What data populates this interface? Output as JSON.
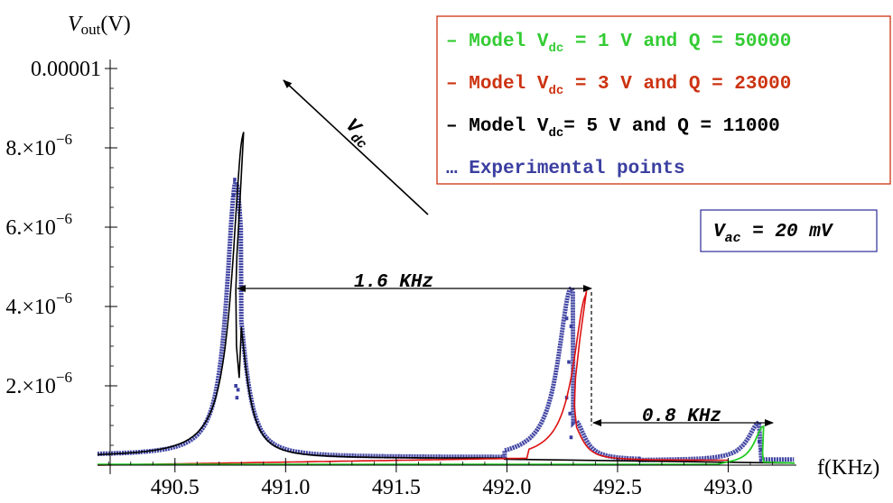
{
  "chart_data": {
    "type": "line",
    "ylabel_main": "V",
    "ylabel_sub": "out",
    "ylabel_unit": "(V)",
    "xlabel": "f(KHz)",
    "xlim": [
      490.15,
      493.3
    ],
    "ylim": [
      0,
      1e-05
    ],
    "x_ticks": [
      490.5,
      491.0,
      491.5,
      492.0,
      492.5,
      493.0
    ],
    "x_tick_labels": [
      "490.5",
      "491.0",
      "491.5",
      "492.0",
      "492.5",
      "493.0"
    ],
    "y_ticks": [
      {
        "value": 1e-05,
        "text": "0.00001",
        "exp": ""
      },
      {
        "value": 8e-06,
        "text": "8.×10",
        "exp": "−6"
      },
      {
        "value": 6e-06,
        "text": "6.×10",
        "exp": "−6"
      },
      {
        "value": 4e-06,
        "text": "4.×10",
        "exp": "−6"
      },
      {
        "value": 2e-06,
        "text": "2.×10",
        "exp": "−6"
      }
    ],
    "legend": [
      {
        "marker": "–",
        "text": "Model V",
        "sub": "dc",
        "rest": " = 1 V and Q = 50000",
        "color": "#33cc33"
      },
      {
        "marker": "–",
        "text": "Model V",
        "sub": "dc",
        "rest": " = 3 V and Q = 23000",
        "color": "#cc3311"
      },
      {
        "marker": "–",
        "text": "Model V",
        "sub": "dc",
        "rest": "= 5 V and Q = 11000",
        "color": "#000000"
      },
      {
        "marker": "…",
        "text": "Experimental points",
        "sub": "",
        "rest": "",
        "color": "#3b3fa0"
      }
    ],
    "annotation_vac": {
      "main": "V",
      "sub": "ac",
      "rest": " = 20 mV"
    },
    "annotation_vdc": {
      "main": "V",
      "sub": "dc"
    },
    "annotation_span1": "1.6 KHz",
    "annotation_span2": "0.8 KHz",
    "series": [
      {
        "name": "Model Vdc = 5 V and Q = 11000",
        "color": "#000000",
        "peak_x": 490.81,
        "peak_y": 8.4e-06,
        "jump_x": 490.775,
        "jump_low_y": 4.4e-06
      },
      {
        "name": "Model Vdc = 3 V and Q = 23000",
        "color": "#dd1111",
        "peak_x": 492.36,
        "peak_y": 4.4e-06,
        "jump_low_y": 9.5e-07
      },
      {
        "name": "Model Vdc = 1 V and Q = 50000",
        "color": "#22cc22",
        "peak_x": 493.16,
        "peak_y": 9.8e-07
      },
      {
        "name": "Experimental points",
        "color": "#3b3fa0"
      }
    ],
    "colors": {
      "experimental": "#3b3fa0",
      "legend_border": "#cc3311",
      "vac_border": "#2b2b99"
    }
  }
}
